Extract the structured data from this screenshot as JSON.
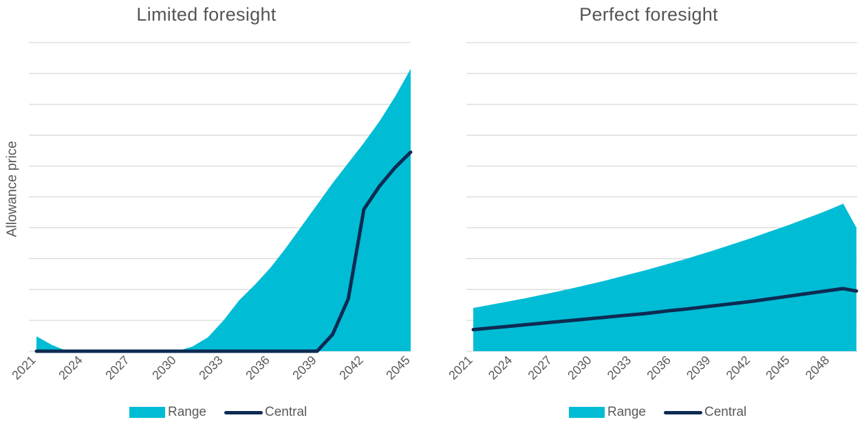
{
  "y_axis_label": "Allowance price",
  "colors": {
    "range": "#00BCD4",
    "central": "#0D2B52",
    "grid": "#D9D9D9",
    "text": "#595959"
  },
  "chart_data": [
    {
      "type": "area",
      "title": "Limited foresight",
      "ylabel": "Allowance price",
      "x": [
        2021,
        2022,
        2023,
        2024,
        2025,
        2026,
        2027,
        2028,
        2029,
        2030,
        2031,
        2032,
        2033,
        2034,
        2035,
        2036,
        2037,
        2038,
        2039,
        2040,
        2041,
        2042,
        2043,
        2044,
        2045
      ],
      "x_tick_labels": [
        "2021",
        "2024",
        "2027",
        "2030",
        "2033",
        "2036",
        "2039",
        "2042",
        "2045"
      ],
      "ylim": [
        0,
        10
      ],
      "gridlines": 10,
      "legend": {
        "position": "bottom",
        "entries": [
          "Range",
          "Central"
        ]
      },
      "series": [
        {
          "name": "Range",
          "kind": "band",
          "lower": [
            0,
            0,
            0,
            0,
            0,
            0,
            0,
            0,
            0,
            0,
            0,
            0,
            0,
            0,
            0,
            0,
            0,
            0,
            0,
            0,
            0,
            0,
            0,
            0,
            0
          ],
          "upper": [
            0.48,
            0.2,
            0,
            0,
            0,
            0,
            0,
            0,
            0,
            0,
            0.15,
            0.45,
            1.0,
            1.65,
            2.15,
            2.7,
            3.35,
            4.05,
            4.75,
            5.45,
            6.1,
            6.75,
            7.45,
            8.25,
            9.15
          ]
        },
        {
          "name": "Central",
          "kind": "line",
          "values": [
            0,
            0,
            0,
            0,
            0,
            0,
            0,
            0,
            0,
            0,
            0,
            0,
            0,
            0,
            0,
            0,
            0,
            0,
            0,
            0.55,
            1.7,
            4.6,
            5.35,
            5.95,
            6.45
          ]
        }
      ]
    },
    {
      "type": "area",
      "title": "Perfect foresight",
      "ylabel": "",
      "x": [
        2021,
        2022,
        2023,
        2024,
        2025,
        2026,
        2027,
        2028,
        2029,
        2030,
        2031,
        2032,
        2033,
        2034,
        2035,
        2036,
        2037,
        2038,
        2039,
        2040,
        2041,
        2042,
        2043,
        2044,
        2045,
        2046,
        2047,
        2048,
        2049,
        2050
      ],
      "x_tick_labels": [
        "2021",
        "2024",
        "2027",
        "2030",
        "2033",
        "2036",
        "2039",
        "2042",
        "2045",
        "2048"
      ],
      "ylim": [
        0,
        10
      ],
      "gridlines": 10,
      "legend": {
        "position": "bottom",
        "entries": [
          "Range",
          "Central"
        ]
      },
      "series": [
        {
          "name": "Range",
          "kind": "band",
          "lower": [
            0,
            0,
            0,
            0,
            0,
            0,
            0,
            0,
            0,
            0,
            0,
            0,
            0,
            0,
            0,
            0,
            0,
            0,
            0,
            0,
            0,
            0,
            0,
            0,
            0,
            0,
            0,
            0,
            0,
            0
          ],
          "upper": [
            1.4,
            1.48,
            1.56,
            1.64,
            1.72,
            1.81,
            1.9,
            1.99,
            2.09,
            2.19,
            2.29,
            2.4,
            2.51,
            2.62,
            2.74,
            2.86,
            2.98,
            3.11,
            3.24,
            3.38,
            3.52,
            3.66,
            3.81,
            3.96,
            4.11,
            4.27,
            4.43,
            4.6,
            4.78,
            4.0
          ]
        },
        {
          "name": "Central",
          "kind": "line",
          "values": [
            0.7,
            0.74,
            0.78,
            0.82,
            0.86,
            0.9,
            0.94,
            0.98,
            1.02,
            1.06,
            1.1,
            1.14,
            1.18,
            1.22,
            1.27,
            1.32,
            1.36,
            1.41,
            1.46,
            1.51,
            1.56,
            1.61,
            1.67,
            1.73,
            1.79,
            1.85,
            1.91,
            1.97,
            2.03,
            1.95
          ]
        }
      ]
    }
  ]
}
